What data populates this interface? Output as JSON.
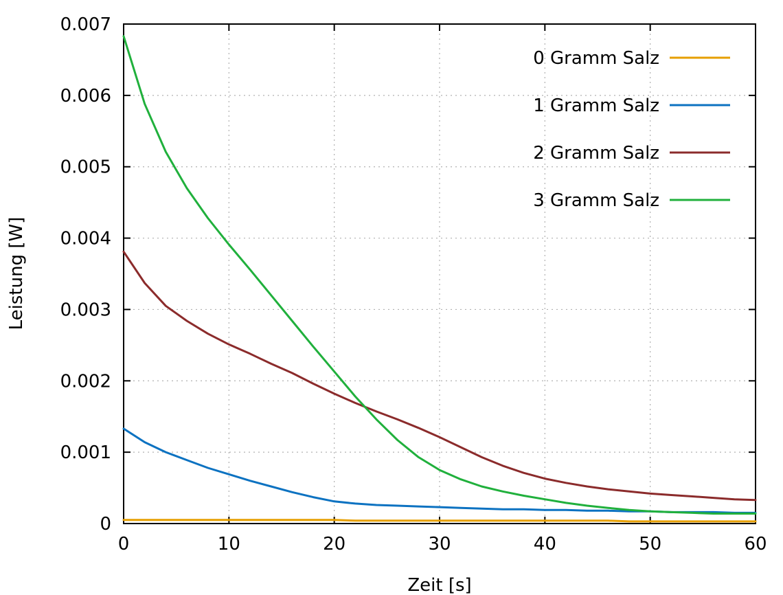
{
  "chart_data": {
    "type": "line",
    "title": "",
    "xlabel": "Zeit [s]",
    "ylabel": "Leistung [W]",
    "xlim": [
      0,
      60
    ],
    "ylim": [
      0,
      0.007
    ],
    "xticks": [
      "0",
      "10",
      "20",
      "30",
      "40",
      "50",
      "60"
    ],
    "yticks": [
      "0",
      "0.001",
      "0.002",
      "0.003",
      "0.004",
      "0.005",
      "0.006",
      "0.007"
    ],
    "grid": true,
    "legend_position": "top-right",
    "x": [
      0,
      2,
      4,
      6,
      8,
      10,
      12,
      14,
      16,
      18,
      20,
      22,
      24,
      26,
      28,
      30,
      32,
      34,
      36,
      38,
      40,
      42,
      44,
      46,
      48,
      50,
      52,
      54,
      56,
      58,
      60
    ],
    "series": [
      {
        "name": "0 Gramm Salz",
        "color": "#e69f00",
        "values": [
          5e-05,
          5e-05,
          5e-05,
          5e-05,
          5e-05,
          5e-05,
          5e-05,
          5e-05,
          5e-05,
          5e-05,
          5e-05,
          4e-05,
          4e-05,
          4e-05,
          4e-05,
          4e-05,
          4e-05,
          4e-05,
          4e-05,
          4e-05,
          4e-05,
          4e-05,
          4e-05,
          4e-05,
          3e-05,
          3e-05,
          3e-05,
          3e-05,
          3e-05,
          3e-05,
          3e-05
        ]
      },
      {
        "name": "1 Gramm Salz",
        "color": "#0c72c1",
        "values": [
          0.00133,
          0.00114,
          0.001,
          0.00089,
          0.00078,
          0.00069,
          0.0006,
          0.00052,
          0.00044,
          0.00037,
          0.00031,
          0.00028,
          0.00026,
          0.00025,
          0.00024,
          0.00023,
          0.00022,
          0.00021,
          0.0002,
          0.0002,
          0.00019,
          0.00019,
          0.00018,
          0.00018,
          0.00017,
          0.00017,
          0.00016,
          0.00016,
          0.00016,
          0.00015,
          0.00015
        ]
      },
      {
        "name": "2 Gramm Salz",
        "color": "#8b2b2b",
        "values": [
          0.00381,
          0.00337,
          0.00305,
          0.00284,
          0.00266,
          0.00251,
          0.00238,
          0.00224,
          0.00211,
          0.00196,
          0.00182,
          0.00169,
          0.00157,
          0.00146,
          0.00134,
          0.00121,
          0.00107,
          0.00093,
          0.00081,
          0.00071,
          0.00063,
          0.00057,
          0.00052,
          0.00048,
          0.00045,
          0.00042,
          0.0004,
          0.00038,
          0.00036,
          0.00034,
          0.00033
        ]
      },
      {
        "name": "3 Gramm Salz",
        "color": "#20b03c",
        "values": [
          0.00683,
          0.00588,
          0.00521,
          0.0047,
          0.00428,
          0.00391,
          0.00356,
          0.0032,
          0.00284,
          0.00248,
          0.00213,
          0.00178,
          0.00146,
          0.00117,
          0.00093,
          0.00075,
          0.00062,
          0.00052,
          0.00045,
          0.00039,
          0.00034,
          0.00029,
          0.00025,
          0.00022,
          0.00019,
          0.00017,
          0.00016,
          0.00015,
          0.00014,
          0.00014,
          0.00014
        ]
      }
    ]
  }
}
